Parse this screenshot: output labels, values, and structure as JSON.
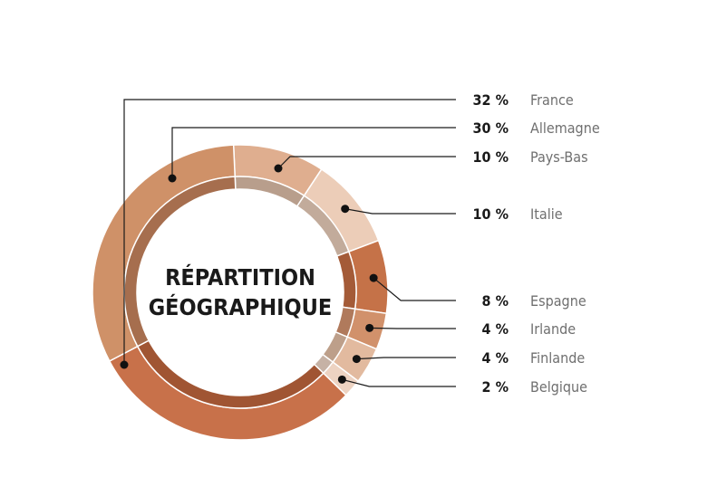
{
  "chart_data": {
    "type": "pie",
    "title": "RÉPARTITION",
    "subtitle": "GÉOGRAPHIQUE",
    "categories": [
      "Pays-Bas",
      "Italie",
      "Espagne",
      "Irlande",
      "Finlande",
      "Belgique",
      "Allemagne",
      "France"
    ],
    "values": [
      10,
      10,
      8,
      4,
      4,
      2,
      30,
      32
    ],
    "value_labels": [
      "10 %",
      "10 %",
      "8 %",
      "4 %",
      "4 %",
      "2 %",
      "30 %",
      "32 %"
    ],
    "colors": [
      "#dfae8f",
      "#eccdb8",
      "#c57248",
      "#d1916b",
      "#e2ba9f",
      "#edd3c2",
      "#c8714a",
      "#cf9168"
    ],
    "inner_colors": [
      "#b89e8c",
      "#c2ab9b",
      "#a45b38",
      "#b07a5c",
      "#bd9f8a",
      "#c6b2a5",
      "#a05533",
      "#a66e4e"
    ],
    "legend_order": [
      "France",
      "Allemagne",
      "Pays-Bas",
      "Italie",
      "Espagne",
      "Irlande",
      "Finlande",
      "Belgique"
    ],
    "legend_placement": "right"
  }
}
